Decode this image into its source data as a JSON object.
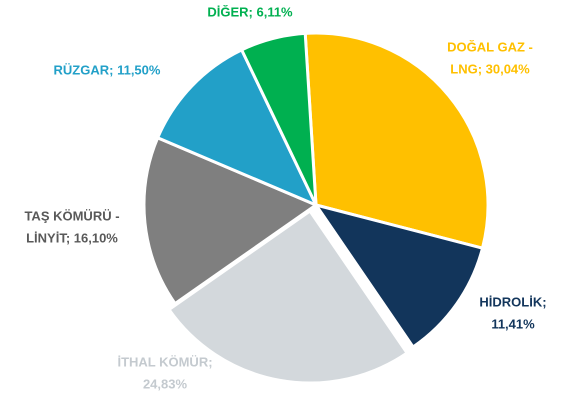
{
  "chart_data": {
    "type": "pie",
    "values": [
      30.04,
      11.41,
      24.83,
      16.1,
      11.5,
      6.11
    ],
    "value_labels": [
      [
        "DOĞAL GAZ -",
        "LNG; 30,04%"
      ],
      [
        "HİDROLİK;",
        "11,41%"
      ],
      [
        "İTHAL KÖMÜR;",
        "24,83%"
      ],
      [
        "TAŞ KÖMÜRÜ -",
        "LİNYİT; 16,10%"
      ],
      [
        "RÜZGAR; 11,50%"
      ],
      [
        "DİĞER; 6,11%"
      ]
    ],
    "colors": [
      "#FFC000",
      "#12355B",
      "#D3D8DC",
      "#7F7F7F",
      "#22A0C8",
      "#00B050"
    ],
    "label_colors": [
      "#FFC000",
      "#12355B",
      "#C4CACF",
      "#595959",
      "#22A0C8",
      "#00B050"
    ]
  }
}
